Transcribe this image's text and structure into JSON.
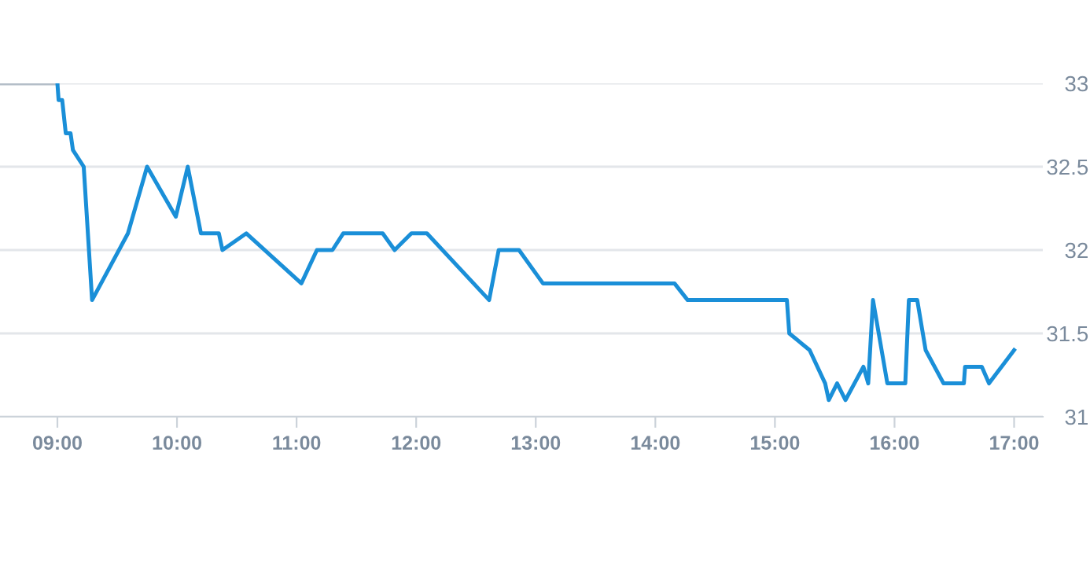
{
  "chart_data": {
    "type": "line",
    "series": [
      {
        "color": "#b4bec8",
        "x": [
          8.52,
          9.0
        ],
        "values": [
          33,
          33
        ]
      },
      {
        "color": "#1a8fd8",
        "x": [
          9.0,
          9.01,
          9.04,
          9.07,
          9.11,
          9.13,
          9.22,
          9.29,
          9.59,
          9.75,
          9.99,
          10.09,
          10.2,
          10.35,
          10.38,
          10.58,
          11.04,
          11.17,
          11.3,
          11.39,
          11.72,
          11.82,
          11.96,
          12.09,
          12.61,
          12.69,
          12.86,
          13.06,
          14.16,
          14.27,
          15.1,
          15.12,
          15.29,
          15.42,
          15.45,
          15.52,
          15.59,
          15.74,
          15.78,
          15.82,
          15.94,
          16.09,
          16.12,
          16.19,
          16.26,
          16.41,
          16.58,
          16.59,
          16.73,
          16.79,
          17.0
        ],
        "values": [
          33,
          32.9,
          32.9,
          32.7,
          32.7,
          32.6,
          32.5,
          31.7,
          32.1,
          32.5,
          32.2,
          32.5,
          32.1,
          32.1,
          32.0,
          32.1,
          31.8,
          32.0,
          32.0,
          32.1,
          32.1,
          32.0,
          32.1,
          32.1,
          31.7,
          32.0,
          32.0,
          31.8,
          31.8,
          31.7,
          31.7,
          31.5,
          31.4,
          31.2,
          31.1,
          31.2,
          31.1,
          31.3,
          31.2,
          31.7,
          31.2,
          31.2,
          31.7,
          31.7,
          31.4,
          31.2,
          31.2,
          31.3,
          31.3,
          31.2,
          31.4
        ]
      }
    ],
    "xlim": [
      8.52,
      17.24
    ],
    "xticks": [
      {
        "value": 9,
        "label": "09:00"
      },
      {
        "value": 10,
        "label": "10:00"
      },
      {
        "value": 11,
        "label": "11:00"
      },
      {
        "value": 12,
        "label": "12:00"
      },
      {
        "value": 13,
        "label": "13:00"
      },
      {
        "value": 14,
        "label": "14:00"
      },
      {
        "value": 15,
        "label": "15:00"
      },
      {
        "value": 16,
        "label": "16:00"
      },
      {
        "value": 17,
        "label": "17:00"
      }
    ],
    "ylim": [
      31,
      33
    ],
    "yticks": [
      31,
      31.5,
      32,
      32.5,
      33
    ],
    "grid": "y",
    "marker": "none",
    "line_style": "solid"
  }
}
